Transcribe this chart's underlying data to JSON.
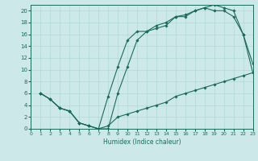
{
  "title": "",
  "xlabel": "Humidex (Indice chaleur)",
  "bg_color": "#cce8e8",
  "line_color": "#1a6b5a",
  "grid_color": "#aad4d4",
  "xlim": [
    0,
    23
  ],
  "ylim": [
    0,
    21
  ],
  "xticks": [
    0,
    1,
    2,
    3,
    4,
    5,
    6,
    7,
    8,
    9,
    10,
    11,
    12,
    13,
    14,
    15,
    16,
    17,
    18,
    19,
    20,
    21,
    22,
    23
  ],
  "yticks": [
    0,
    2,
    4,
    6,
    8,
    10,
    12,
    14,
    16,
    18,
    20
  ],
  "line1_x": [
    1,
    2,
    3,
    4,
    5,
    6,
    7,
    8,
    9,
    10,
    11,
    12,
    13,
    14,
    15,
    16,
    17,
    18,
    19,
    20,
    21,
    22,
    23
  ],
  "line1_y": [
    6,
    5,
    3.5,
    3,
    1,
    0.5,
    0,
    0,
    6,
    10.5,
    15,
    16.5,
    17,
    17.5,
    19,
    19.3,
    20,
    20.5,
    21,
    20.5,
    20,
    16,
    11
  ],
  "line2_x": [
    1,
    2,
    3,
    4,
    5,
    6,
    7,
    8,
    9,
    10,
    11,
    12,
    13,
    14,
    15,
    16,
    17,
    18,
    19,
    20,
    21,
    22,
    23
  ],
  "line2_y": [
    6,
    5,
    3.5,
    3,
    1,
    0.5,
    0,
    5.5,
    10.5,
    15,
    16.5,
    16.5,
    17.5,
    18,
    19,
    19,
    20,
    20.5,
    20,
    20,
    19,
    16,
    9.5
  ],
  "line3_x": [
    1,
    2,
    3,
    4,
    5,
    6,
    7,
    8,
    9,
    10,
    11,
    12,
    13,
    14,
    15,
    16,
    17,
    18,
    19,
    20,
    21,
    22,
    23
  ],
  "line3_y": [
    6,
    5,
    3.5,
    3,
    1,
    0.5,
    0,
    0.5,
    2.0,
    2.5,
    3.0,
    3.5,
    4.0,
    4.5,
    5.5,
    6.0,
    6.5,
    7.0,
    7.5,
    8.0,
    8.5,
    9.0,
    9.5
  ]
}
